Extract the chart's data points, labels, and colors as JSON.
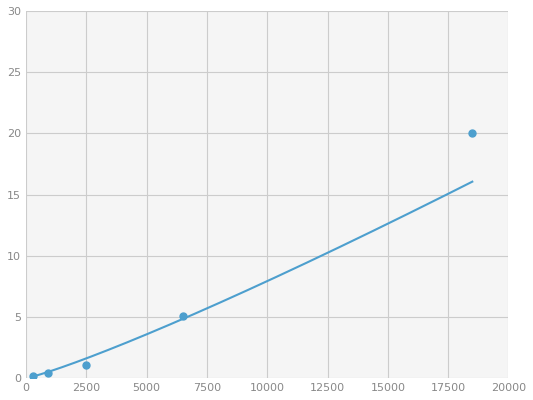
{
  "x": [
    300,
    900,
    2500,
    6500,
    18500
  ],
  "y": [
    0.2,
    0.4,
    1.1,
    5.1,
    20.0
  ],
  "line_color": "#4d9fce",
  "marker_color": "#4d9fce",
  "marker_size": 5,
  "line_width": 1.5,
  "xlim": [
    0,
    20000
  ],
  "ylim": [
    0,
    30
  ],
  "xticks": [
    0,
    2500,
    5000,
    7500,
    10000,
    12500,
    15000,
    17500,
    20000
  ],
  "yticks": [
    0,
    5,
    10,
    15,
    20,
    25,
    30
  ],
  "grid_color": "#cccccc",
  "background_color": "#f5f5f5",
  "figure_background": "#ffffff"
}
